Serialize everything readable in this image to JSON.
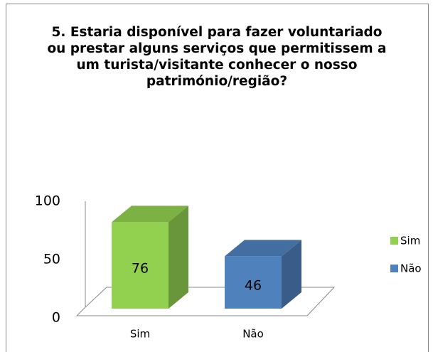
{
  "chart_data": {
    "type": "bar3d",
    "title": "5. Estaria disponível para fazer voluntariado ou prestar alguns serviços que permitissem a um turista/visitante conhecer o nosso património/região?",
    "categories": [
      "Sim",
      "Não"
    ],
    "values": [
      76,
      46
    ],
    "colors": [
      "#92d050",
      "#4f81bd"
    ],
    "legend": [
      {
        "name": "Sim",
        "color": "#92d050"
      },
      {
        "name": "Não",
        "color": "#4f81bd"
      }
    ],
    "legend_position": "right",
    "ylim": [
      0,
      100
    ],
    "yticks": [
      0,
      50,
      100
    ],
    "grid": false
  }
}
